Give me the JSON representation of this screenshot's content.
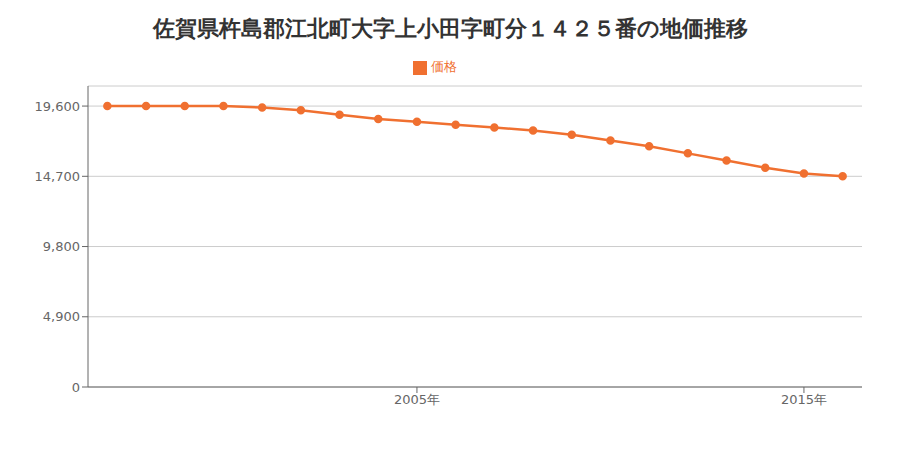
{
  "chart_data": {
    "type": "line",
    "title": "佐賀県杵島郡江北町大字上小田字町分１４２５番の地価推移",
    "x": [
      1997,
      1998,
      1999,
      2000,
      2001,
      2002,
      2003,
      2004,
      2005,
      2006,
      2007,
      2008,
      2009,
      2010,
      2011,
      2012,
      2013,
      2014,
      2015,
      2016
    ],
    "series": [
      {
        "name": "価格",
        "color": "#f07030",
        "marker": "circle",
        "values": [
          19600,
          19600,
          19600,
          19600,
          19500,
          19300,
          19000,
          18700,
          18500,
          18300,
          18100,
          17900,
          17600,
          17200,
          16800,
          16300,
          15800,
          15300,
          14900,
          14700
        ]
      }
    ],
    "xlim": [
      1996.5,
      2016.5
    ],
    "xticks": [
      {
        "value": 2005,
        "label": "2005年"
      },
      {
        "value": 2015,
        "label": "2015年"
      }
    ],
    "ylim": [
      0,
      21000
    ],
    "yticks": [
      0,
      {
        "value": 4900,
        "label": "4,900"
      },
      {
        "value": 9800,
        "label": "9,800"
      },
      {
        "value": 14700,
        "label": "14,700"
      },
      {
        "value": 19600,
        "label": "19,600"
      }
    ],
    "grid": true,
    "legend": "top"
  }
}
